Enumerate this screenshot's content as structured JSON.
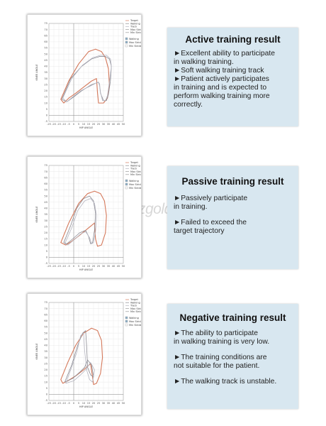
{
  "watermark": "zzgoldelite.com",
  "colors": {
    "target": "#d4785a",
    "walk": "#8a8a92",
    "walk_light": "#b5b5c0",
    "info_bg": "#d8e7f0"
  },
  "panels": [
    {
      "title": "Active training result",
      "bullets": [
        [
          "►Excellent ability to participate",
          " in walking training."
        ],
        [
          "►Soft walking training track"
        ],
        [
          "►Patient actively participates",
          " in training and is expected to",
          " perform walking training more",
          " correctly."
        ]
      ],
      "chart_data": {
        "type": "line",
        "xlabel": "HIP ANGLE",
        "ylabel": "KNEE ANGLE",
        "xlim": [
          -25,
          50
        ],
        "ylim": [
          -5,
          75
        ],
        "xticks": [
          -25,
          -20,
          -15,
          -10,
          -5,
          0,
          5,
          10,
          15,
          20,
          25,
          30,
          35,
          40,
          45,
          50
        ],
        "yticks": [
          -5,
          0,
          5,
          10,
          15,
          20,
          25,
          30,
          35,
          40,
          45,
          50,
          55,
          60,
          65,
          70,
          75
        ],
        "legend": {
          "lines": [
            "Target",
            "Walking",
            "Track",
            "Max Stride",
            "Min Stride"
          ],
          "checks": [
            "Walking",
            "Max Stride",
            "Min Stride"
          ],
          "checked": [
            true,
            true,
            false
          ]
        },
        "series": [
          {
            "name": "Target",
            "x": [
              -13,
              -5,
              5,
              15,
              22,
              28,
              32,
              35,
              36,
              34,
              30,
              25,
              24,
              23,
              18,
              10,
              2,
              -5,
              -10,
              -13
            ],
            "y": [
              13,
              28,
              42,
              52,
              54,
              52,
              47,
              38,
              25,
              14,
              10,
              10,
              18,
              30,
              28,
              23,
              18,
              14,
              10,
              13
            ]
          },
          {
            "name": "Walking",
            "x": [
              -12,
              -3,
              8,
              18,
              26,
              32,
              36,
              38,
              37,
              35,
              33,
              30,
              27,
              26,
              25,
              18,
              8,
              0,
              -7,
              -12
            ],
            "y": [
              13,
              30,
              40,
              46,
              48,
              48,
              46,
              40,
              28,
              17,
              12,
              12,
              18,
              25,
              27,
              25,
              20,
              15,
              11,
              13
            ]
          },
          {
            "name": "Track",
            "x": [
              -11,
              -2,
              9,
              19,
              27,
              33,
              37,
              38,
              36,
              34,
              32,
              29,
              27,
              26,
              24,
              17,
              7,
              -1,
              -7,
              -11
            ],
            "y": [
              14,
              30,
              41,
              47,
              49,
              49,
              46,
              40,
              27,
              16,
              12,
              12,
              19,
              26,
              27,
              24,
              20,
              15,
              11,
              14
            ]
          }
        ]
      }
    },
    {
      "title": "Passive training result",
      "bullets": [
        [
          "►Passively participate",
          " in training."
        ],
        [
          "►Failed to exceed the",
          " target trajectory"
        ]
      ],
      "chart_data": {
        "type": "line",
        "xlabel": "HIP ANGLE",
        "ylabel": "KNEE ANGLE",
        "xlim": [
          -25,
          50
        ],
        "ylim": [
          -5,
          75
        ],
        "xticks": [
          -25,
          -20,
          -15,
          -10,
          -5,
          0,
          5,
          10,
          15,
          20,
          25,
          30,
          35,
          40,
          45,
          50
        ],
        "yticks": [
          -5,
          0,
          5,
          10,
          15,
          20,
          25,
          30,
          35,
          40,
          45,
          50,
          55,
          60,
          65,
          70,
          75
        ],
        "legend": {
          "lines": [
            "Target",
            "Walking",
            "Track",
            "Max Stride",
            "Min Stride"
          ],
          "checks": [
            "Walking",
            "Max Stride",
            "Min Stride"
          ],
          "checked": [
            true,
            true,
            false
          ]
        },
        "series": [
          {
            "name": "Target",
            "x": [
              -13,
              -5,
              5,
              14,
              21,
              27,
              31,
              33,
              32,
              28,
              24,
              22,
              21,
              15,
              6,
              -2,
              -8,
              -13
            ],
            "y": [
              12,
              28,
              44,
              52,
              54,
              52,
              46,
              34,
              20,
              10,
              9,
              15,
              28,
              24,
              18,
              13,
              10,
              12
            ]
          },
          {
            "name": "Walking",
            "x": [
              -10,
              -3,
              3,
              10,
              16,
              20,
              22,
              21,
              19,
              17,
              15,
              12,
              6,
              -1,
              -7,
              -10
            ],
            "y": [
              12,
              26,
              40,
              48,
              50,
              46,
              36,
              22,
              12,
              11,
              17,
              22,
              20,
              15,
              11,
              12
            ]
          },
          {
            "name": "Track",
            "x": [
              -9,
              -2,
              4,
              11,
              17,
              21,
              23,
              22,
              20,
              18,
              16,
              12,
              7,
              0,
              -6,
              -9
            ],
            "y": [
              11,
              24,
              38,
              46,
              48,
              44,
              34,
              21,
              12,
              11,
              16,
              21,
              19,
              14,
              10,
              11
            ]
          }
        ]
      }
    },
    {
      "title": "Negative training result",
      "bullets": [
        [
          "►The ability to participate",
          " in walking training is very low."
        ],
        [
          "►The training conditions are",
          " not suitable for the patient."
        ],
        [
          "►The walking track is unstable."
        ]
      ],
      "chart_data": {
        "type": "line",
        "xlabel": "HIP ANGLE",
        "ylabel": "KNEE ANGLE",
        "xlim": [
          -25,
          50
        ],
        "ylim": [
          -5,
          75
        ],
        "xticks": [
          -25,
          -20,
          -15,
          -10,
          -5,
          0,
          5,
          10,
          15,
          20,
          25,
          30,
          35,
          40,
          45,
          50
        ],
        "yticks": [
          -5,
          0,
          5,
          10,
          15,
          20,
          25,
          30,
          35,
          40,
          45,
          50,
          55,
          60,
          65,
          70,
          75
        ],
        "legend": {
          "lines": [
            "Target",
            "Walking",
            "Track",
            "Max Stride",
            "Min Stride"
          ],
          "checks": [
            "Walking",
            "Max Stride",
            "Min Stride"
          ],
          "checked": [
            true,
            true,
            false
          ]
        },
        "series": [
          {
            "name": "Target",
            "x": [
              -13,
              -6,
              2,
              10,
              18,
              24,
              28,
              29,
              27,
              23,
              20,
              19,
              17,
              10,
              2,
              -6,
              -11,
              -13
            ],
            "y": [
              12,
              26,
              40,
              50,
              54,
              52,
              44,
              30,
              17,
              9,
              8,
              14,
              25,
              20,
              15,
              11,
              9,
              12
            ]
          },
          {
            "name": "Walking",
            "x": [
              -9,
              -2,
              4,
              9,
              12,
              13,
              14,
              17,
              20,
              18,
              14,
              11,
              6,
              -1,
              -9
            ],
            "y": [
              10,
              24,
              40,
              50,
              52,
              40,
              22,
              16,
              14,
              24,
              28,
              22,
              18,
              13,
              10
            ]
          },
          {
            "name": "Track",
            "x": [
              -8,
              -3,
              3,
              7,
              10,
              11,
              13,
              16,
              19,
              21,
              17,
              12,
              7,
              0,
              -8
            ],
            "y": [
              9,
              20,
              34,
              48,
              50,
              36,
              20,
              12,
              10,
              20,
              26,
              20,
              16,
              11,
              9
            ]
          }
        ]
      }
    }
  ]
}
